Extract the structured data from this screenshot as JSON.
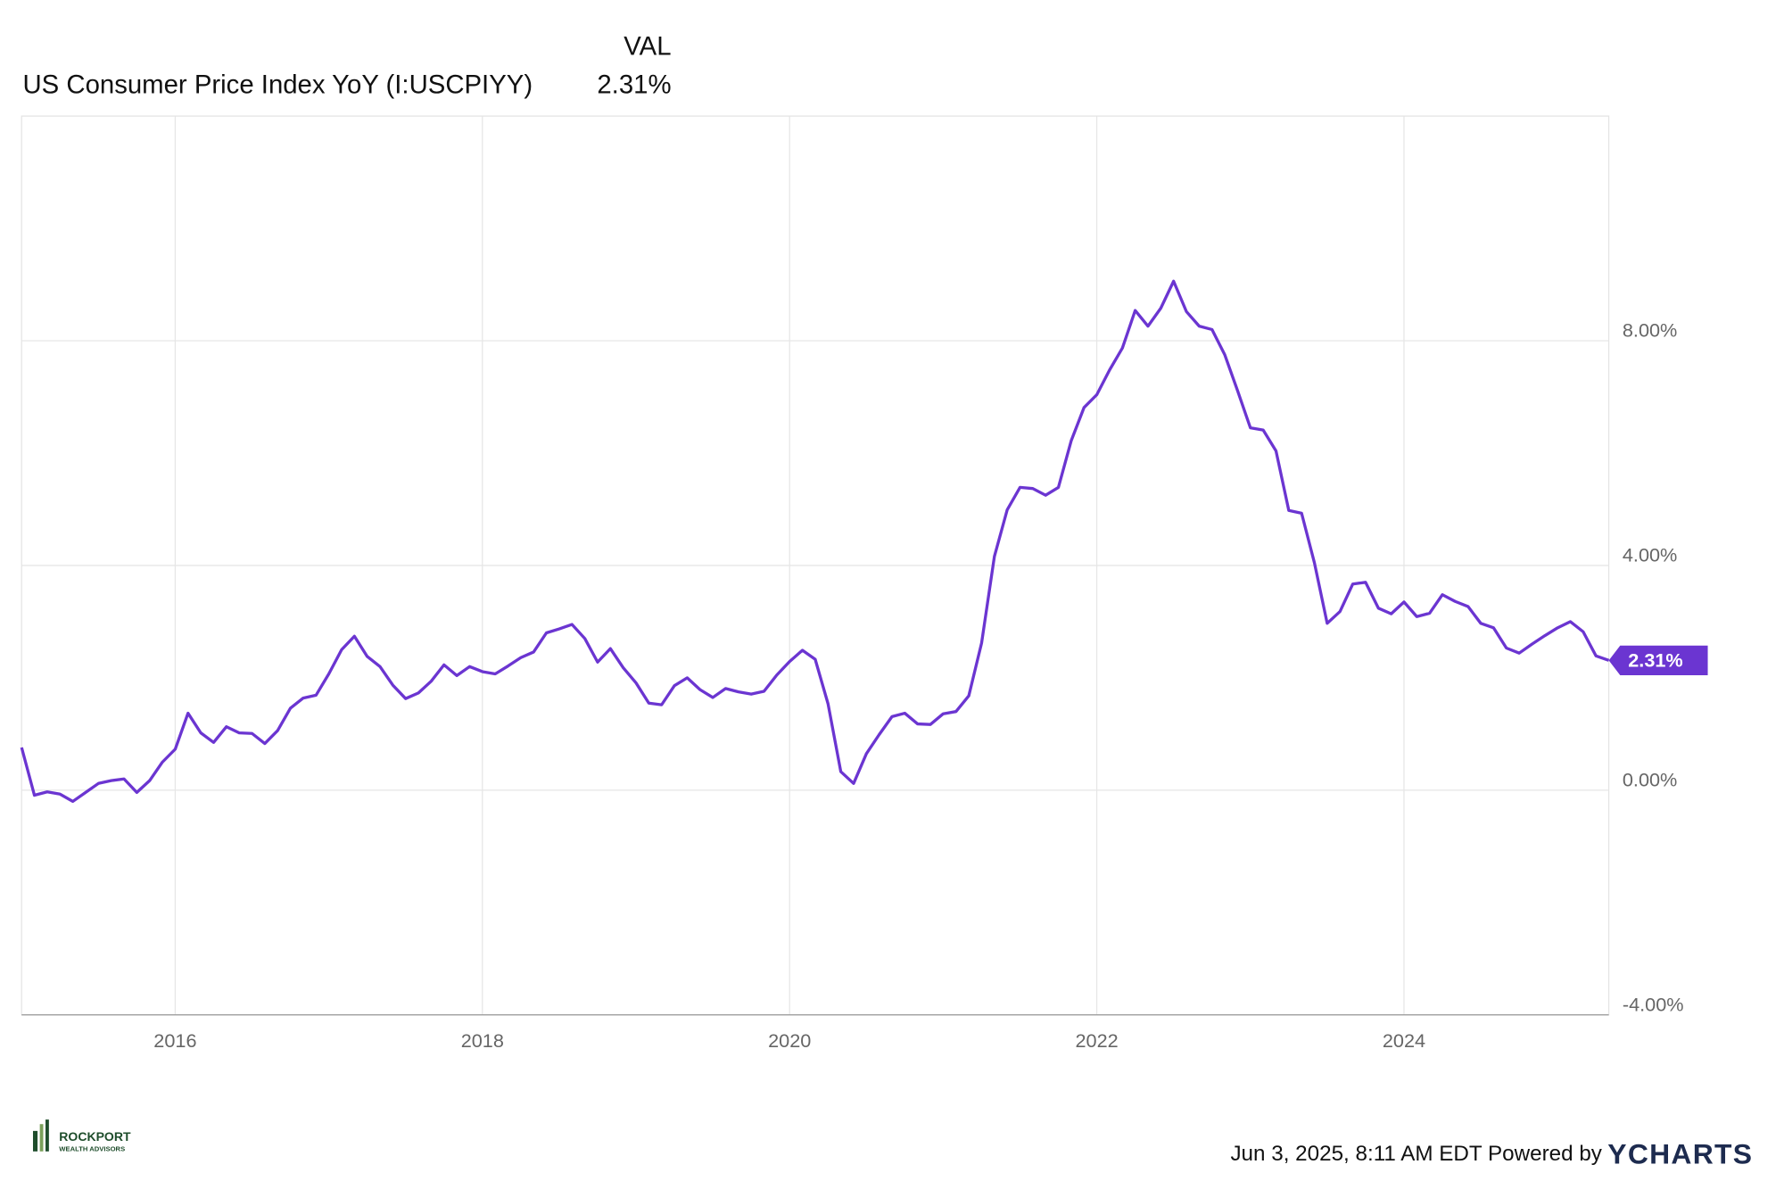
{
  "chart_data": {
    "type": "line",
    "column_header": "VAL",
    "last_label": "2.31%",
    "x": [
      "2014-12",
      "2015-01",
      "2015-02",
      "2015-03",
      "2015-04",
      "2015-05",
      "2015-06",
      "2015-07",
      "2015-08",
      "2015-09",
      "2015-10",
      "2015-11",
      "2015-12",
      "2016-01",
      "2016-02",
      "2016-03",
      "2016-04",
      "2016-05",
      "2016-06",
      "2016-07",
      "2016-08",
      "2016-09",
      "2016-10",
      "2016-11",
      "2016-12",
      "2017-01",
      "2017-02",
      "2017-03",
      "2017-04",
      "2017-05",
      "2017-06",
      "2017-07",
      "2017-08",
      "2017-09",
      "2017-10",
      "2017-11",
      "2017-12",
      "2018-01",
      "2018-02",
      "2018-03",
      "2018-04",
      "2018-05",
      "2018-06",
      "2018-07",
      "2018-08",
      "2018-09",
      "2018-10",
      "2018-11",
      "2018-12",
      "2019-01",
      "2019-02",
      "2019-03",
      "2019-04",
      "2019-05",
      "2019-06",
      "2019-07",
      "2019-08",
      "2019-09",
      "2019-10",
      "2019-11",
      "2019-12",
      "2020-01",
      "2020-02",
      "2020-03",
      "2020-04",
      "2020-05",
      "2020-06",
      "2020-07",
      "2020-08",
      "2020-09",
      "2020-10",
      "2020-11",
      "2020-12",
      "2021-01",
      "2021-02",
      "2021-03",
      "2021-04",
      "2021-05",
      "2021-06",
      "2021-07",
      "2021-08",
      "2021-09",
      "2021-10",
      "2021-11",
      "2021-12",
      "2022-01",
      "2022-02",
      "2022-03",
      "2022-04",
      "2022-05",
      "2022-06",
      "2022-07",
      "2022-08",
      "2022-09",
      "2022-10",
      "2022-11",
      "2022-12",
      "2023-01",
      "2023-02",
      "2023-03",
      "2023-04",
      "2023-05",
      "2023-06",
      "2023-07",
      "2023-08",
      "2023-09",
      "2023-10",
      "2023-11",
      "2023-12",
      "2024-01",
      "2024-02",
      "2024-03",
      "2024-04",
      "2024-05",
      "2024-06",
      "2024-07",
      "2024-08",
      "2024-09",
      "2024-10",
      "2024-11",
      "2024-12",
      "2025-01",
      "2025-02",
      "2025-03",
      "2025-04"
    ],
    "series": [
      {
        "name": "US Consumer Price Index YoY (I:USCPIYY)",
        "color": "#6b35d1",
        "values": [
          0.76,
          -0.09,
          -0.03,
          -0.07,
          -0.2,
          -0.04,
          0.12,
          0.17,
          0.2,
          -0.04,
          0.17,
          0.5,
          0.73,
          1.37,
          1.02,
          0.85,
          1.13,
          1.02,
          1.01,
          0.83,
          1.06,
          1.46,
          1.64,
          1.69,
          2.07,
          2.5,
          2.74,
          2.38,
          2.2,
          1.87,
          1.63,
          1.73,
          1.94,
          2.23,
          2.04,
          2.2,
          2.11,
          2.07,
          2.21,
          2.36,
          2.46,
          2.8,
          2.87,
          2.95,
          2.7,
          2.28,
          2.52,
          2.18,
          1.91,
          1.55,
          1.52,
          1.86,
          2.0,
          1.79,
          1.65,
          1.81,
          1.75,
          1.71,
          1.76,
          2.05,
          2.29,
          2.49,
          2.33,
          1.54,
          0.33,
          0.12,
          0.65,
          0.99,
          1.31,
          1.37,
          1.18,
          1.17,
          1.36,
          1.4,
          1.68,
          2.62,
          4.16,
          4.99,
          5.39,
          5.37,
          5.25,
          5.39,
          6.22,
          6.81,
          7.04,
          7.48,
          7.87,
          8.54,
          8.26,
          8.58,
          9.06,
          8.52,
          8.26,
          8.2,
          7.75,
          7.11,
          6.45,
          6.41,
          6.04,
          4.98,
          4.93,
          4.05,
          2.97,
          3.18,
          3.67,
          3.7,
          3.24,
          3.14,
          3.35,
          3.09,
          3.15,
          3.48,
          3.36,
          3.27,
          2.97,
          2.89,
          2.53,
          2.44,
          2.6,
          2.75,
          2.89,
          3.0,
          2.82,
          2.39,
          2.31
        ]
      }
    ],
    "xlim": [
      "2014-12",
      "2025-04"
    ],
    "xticks": [
      2016,
      2018,
      2020,
      2022,
      2024
    ],
    "ylim": [
      -4,
      12
    ],
    "yticks": [
      {
        "value": -4,
        "label": "-4.00%"
      },
      {
        "value": 0,
        "label": "0.00%"
      },
      {
        "value": 4,
        "label": "4.00%"
      },
      {
        "value": 8,
        "label": "8.00%"
      }
    ],
    "grid": true
  },
  "footer": {
    "timestamp": "Jun 3, 2025, 8:11 AM EDT Powered by",
    "brand": "YCHARTS"
  },
  "logo": {
    "name": "ROCKPORT",
    "tagline": "WEALTH ADVISORS"
  }
}
